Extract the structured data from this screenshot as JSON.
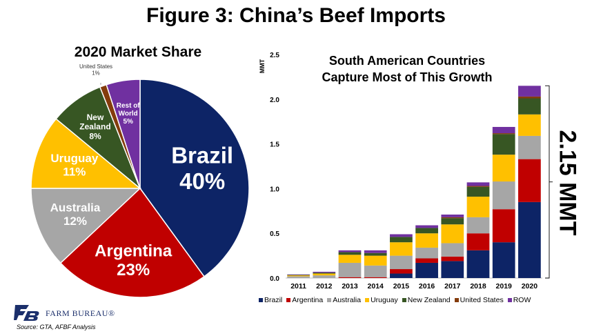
{
  "title": "Figure 3: China’s Beef Imports",
  "source": "Source: GTA, AFBF Analysis",
  "logo": {
    "icon": "fb-logo-icon",
    "text": "FARM BUREAU®"
  },
  "chart_data": [
    {
      "type": "pie",
      "title": "2020 Market Share",
      "slices": [
        {
          "label": "Brazil",
          "value": 40,
          "value_label": "40%",
          "color": "#0d2466"
        },
        {
          "label": "Argentina",
          "value": 23,
          "value_label": "23%",
          "color": "#c00000"
        },
        {
          "label": "Australia",
          "value": 12,
          "value_label": "12%",
          "color": "#a6a6a6"
        },
        {
          "label": "Uruguay",
          "value": 11,
          "value_label": "11%",
          "color": "#ffc000"
        },
        {
          "label": "New Zealand",
          "value": 8,
          "value_label": "8%",
          "color": "#375623"
        },
        {
          "label": "United States",
          "value": 1,
          "value_label": "1%",
          "color": "#843c0c"
        },
        {
          "label": "Rest of World",
          "value": 5,
          "value_label": "5%",
          "color": "#7030a0"
        }
      ]
    },
    {
      "type": "bar",
      "stacked": true,
      "title": "South American Countries Capture Most of This Growth",
      "title_lines": [
        "South American Countries",
        "Capture Most of This Growth"
      ],
      "ylabel": "MMT",
      "ylim": [
        0,
        2.5
      ],
      "yticks": [
        "0.0",
        "0.5",
        "1.0",
        "1.5",
        "2.0",
        "2.5"
      ],
      "ytick_values": [
        0,
        0.5,
        1.0,
        1.5,
        2.0,
        2.5
      ],
      "categories": [
        "2011",
        "2012",
        "2013",
        "2014",
        "2015",
        "2016",
        "2017",
        "2018",
        "2019",
        "2020"
      ],
      "series": [
        {
          "name": "Brazil",
          "color": "#0d2466",
          "values": [
            0,
            0,
            0,
            0,
            0.05,
            0.17,
            0.19,
            0.31,
            0.4,
            0.85
          ]
        },
        {
          "name": "Argentina",
          "color": "#c00000",
          "values": [
            0,
            0,
            0.01,
            0.01,
            0.05,
            0.05,
            0.05,
            0.19,
            0.37,
            0.48
          ]
        },
        {
          "name": "Australia",
          "color": "#a6a6a6",
          "values": [
            0.02,
            0.03,
            0.16,
            0.13,
            0.15,
            0.12,
            0.15,
            0.18,
            0.31,
            0.26
          ]
        },
        {
          "name": "Uruguay",
          "color": "#ffc000",
          "values": [
            0.01,
            0.02,
            0.09,
            0.11,
            0.15,
            0.16,
            0.21,
            0.23,
            0.3,
            0.24
          ]
        },
        {
          "name": "New Zealand",
          "color": "#375623",
          "values": [
            0.005,
            0.01,
            0.03,
            0.03,
            0.06,
            0.06,
            0.07,
            0.11,
            0.23,
            0.18
          ]
        },
        {
          "name": "United States",
          "color": "#843c0c",
          "values": [
            0,
            0,
            0,
            0,
            0,
            0,
            0.01,
            0.01,
            0.01,
            0.02
          ]
        },
        {
          "name": "ROW",
          "color": "#7030a0",
          "values": [
            0.005,
            0.01,
            0.02,
            0.03,
            0.03,
            0.03,
            0.03,
            0.04,
            0.07,
            0.12
          ]
        }
      ],
      "annotation": "2.15 MMT"
    }
  ]
}
